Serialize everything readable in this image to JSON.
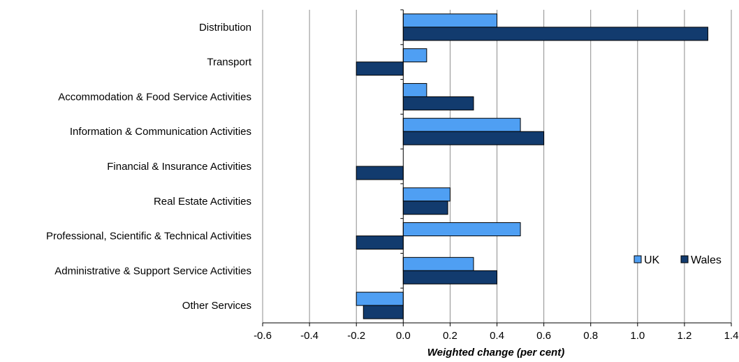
{
  "chart_data": {
    "type": "bar",
    "orientation": "horizontal",
    "title": "",
    "xlabel": "Weighted change (per cent)",
    "ylabel": "",
    "xlim": [
      -0.6,
      1.4
    ],
    "x_ticks": [
      "-0.6",
      "-0.4",
      "-0.2",
      "0.0",
      "0.2",
      "0.4",
      "0.6",
      "0.8",
      "1.0",
      "1.2",
      "1.4"
    ],
    "x_tick_values": [
      -0.6,
      -0.4,
      -0.2,
      0.0,
      0.2,
      0.4,
      0.6,
      0.8,
      1.0,
      1.2,
      1.4
    ],
    "grid": "vertical",
    "legend_position": "right",
    "categories": [
      "Distribution",
      "Transport",
      "Accommodation & Food Service Activities",
      "Information & Communication Activities",
      "Financial & Insurance Activities",
      "Real Estate Activities",
      "Professional, Scientific & Technical Activities",
      "Administrative & Support Service Activities",
      "Other Services"
    ],
    "series": [
      {
        "name": "UK",
        "color": "#4f9ff3",
        "values": [
          0.4,
          0.1,
          0.1,
          0.5,
          0.0,
          0.2,
          0.5,
          0.3,
          -0.2
        ]
      },
      {
        "name": "Wales",
        "color": "#123b6e",
        "values": [
          1.3,
          -0.2,
          0.3,
          0.6,
          -0.2,
          0.19,
          -0.2,
          0.4,
          -0.17
        ]
      }
    ]
  }
}
